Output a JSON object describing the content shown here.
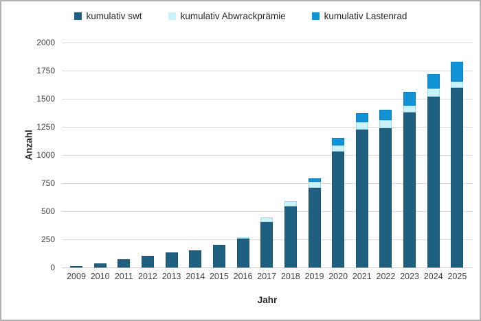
{
  "colors": {
    "background": "#ffffff",
    "frame_border": "#b2b2b2",
    "gridline": "#d9d9d9",
    "axis_line": "#c9c9c9",
    "tick_text": "#404040",
    "title_text": "#262626",
    "series_swt": "#1f5f7f",
    "series_abwrackpraemie": "#c9f3f8",
    "series_lastenrad": "#1193d5"
  },
  "chart_data": {
    "type": "bar",
    "stacked": true,
    "title": "",
    "xlabel": "Jahr",
    "ylabel": "Anzahl",
    "ylim": [
      0,
      2000
    ],
    "ytick_step": 250,
    "ytick_labels": [
      "0",
      "250",
      "500",
      "750",
      "1000",
      "1250",
      "1500",
      "1750",
      "2000"
    ],
    "grid": true,
    "legend_position": "top",
    "categories": [
      "2009",
      "2010",
      "2011",
      "2012",
      "2013",
      "2014",
      "2015",
      "2016",
      "2017",
      "2018",
      "2019",
      "2020",
      "2021",
      "2022",
      "2023",
      "2024",
      "2025"
    ],
    "series": [
      {
        "name": "kumulativ swt",
        "color": "#1f5f7f",
        "values": [
          15,
          35,
          75,
          105,
          135,
          155,
          200,
          255,
          400,
          540,
          705,
          1030,
          1225,
          1240,
          1380,
          1520,
          1595
        ]
      },
      {
        "name": "kumulativ Abwrackprämie",
        "color": "#c9f3f8",
        "values": [
          0,
          0,
          0,
          0,
          0,
          0,
          0,
          15,
          45,
          50,
          60,
          55,
          65,
          70,
          60,
          70,
          60
        ]
      },
      {
        "name": "kumulativ Lastenrad",
        "color": "#1193d5",
        "values": [
          0,
          0,
          0,
          0,
          0,
          0,
          0,
          0,
          0,
          0,
          25,
          70,
          80,
          95,
          120,
          130,
          175
        ]
      }
    ],
    "totals": [
      15,
      35,
      75,
      105,
      135,
      155,
      200,
      270,
      445,
      590,
      790,
      1155,
      1370,
      1405,
      1560,
      1720,
      1830
    ]
  }
}
